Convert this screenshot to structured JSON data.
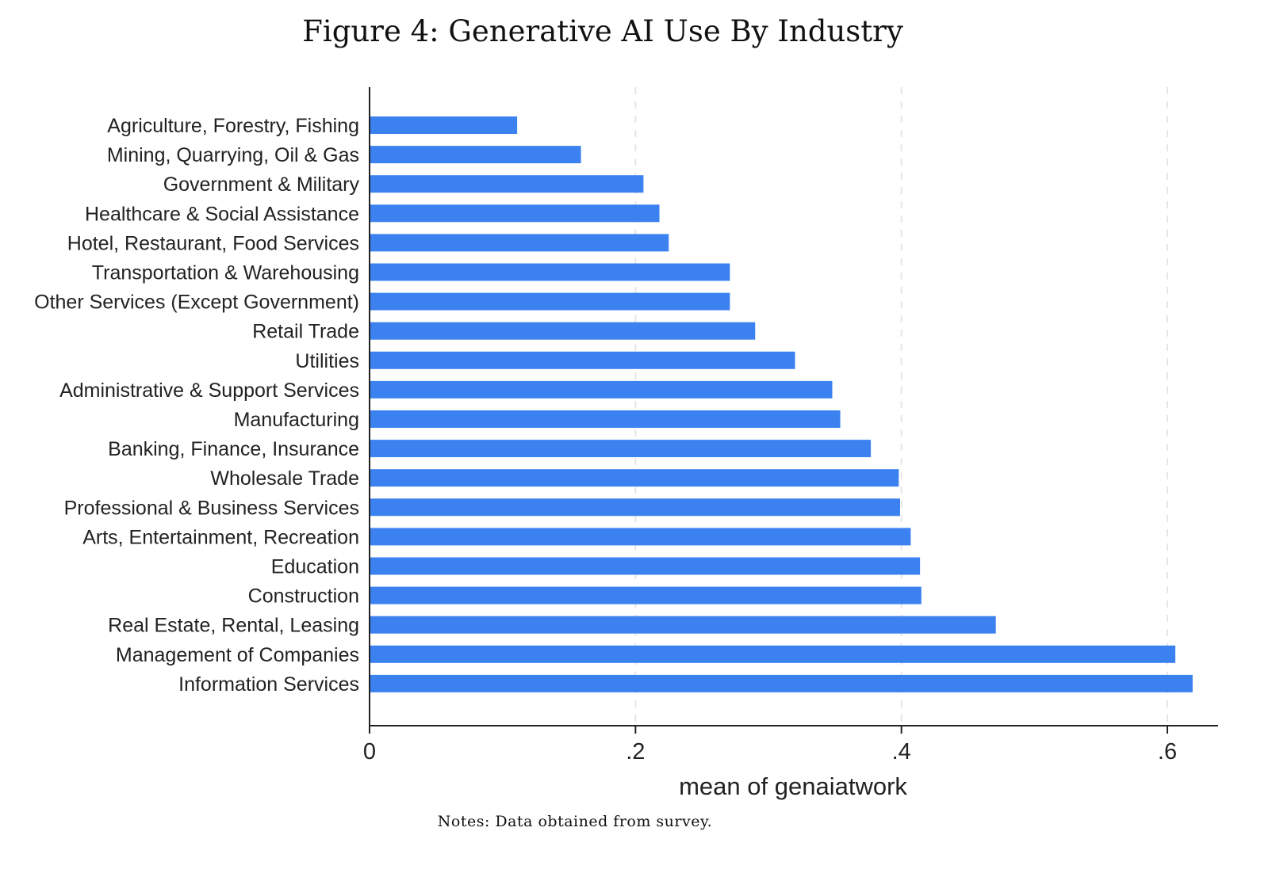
{
  "figure": {
    "title": "Figure 4: Generative AI Use By Industry",
    "notes": "Notes: Data obtained from survey."
  },
  "chart_data": {
    "type": "bar",
    "orientation": "horizontal",
    "title": "Figure 4: Generative AI Use By Industry",
    "xlabel": "mean of genaiatwork",
    "ylabel": "",
    "categories": [
      "Agriculture, Forestry, Fishing",
      "Mining, Quarrying, Oil & Gas",
      "Government & Military",
      "Healthcare & Social Assistance",
      "Hotel, Restaurant, Food Services",
      "Transportation & Warehousing",
      "Other Services (Except Government)",
      "Retail Trade",
      "Utilities",
      "Administrative & Support Services",
      "Manufacturing",
      "Banking, Finance, Insurance",
      "Wholesale Trade",
      "Professional & Business Services",
      "Arts, Entertainment, Recreation",
      "Education",
      "Construction",
      "Real Estate, Rental, Leasing",
      "Management of Companies",
      "Information Services"
    ],
    "values": [
      0.111,
      0.159,
      0.206,
      0.218,
      0.225,
      0.271,
      0.271,
      0.29,
      0.32,
      0.348,
      0.354,
      0.377,
      0.398,
      0.399,
      0.407,
      0.414,
      0.415,
      0.471,
      0.606,
      0.619
    ],
    "xlim": [
      0,
      0.64
    ],
    "xticks": [
      0,
      0.2,
      0.4,
      0.6
    ],
    "xtick_labels": [
      "0",
      ".2",
      ".4",
      ".6"
    ],
    "grid": "vertical dashed",
    "legend": "none",
    "bar_color": "#3b82f0",
    "grid_color": "#e6e6e6"
  }
}
